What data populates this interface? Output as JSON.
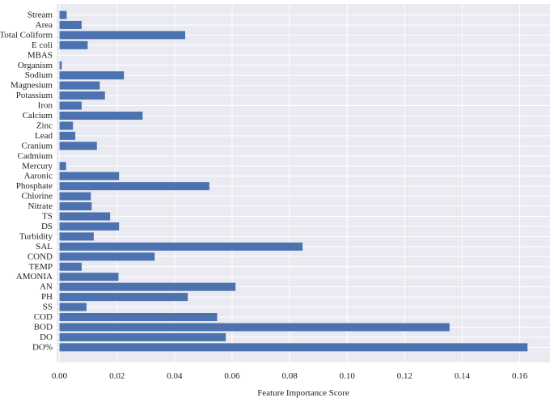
{
  "chart_data": {
    "type": "bar",
    "orientation": "horizontal",
    "title": "",
    "xlabel": "Feature Importance Score",
    "ylabel": "",
    "xlim": [
      -0.001,
      0.1705
    ],
    "xticks": [
      0.0,
      0.02,
      0.04,
      0.06,
      0.08,
      0.1,
      0.12,
      0.14,
      0.16
    ],
    "xtick_labels": [
      "0.00",
      "0.02",
      "0.04",
      "0.06",
      "0.08",
      "0.10",
      "0.12",
      "0.14",
      "0.16"
    ],
    "grid": true,
    "legend": "none",
    "colors": {
      "bar": "#4c72b0",
      "plot_background": "#eaeaf2",
      "grid": "#ffffff"
    },
    "categories": [
      "Stream",
      "Area",
      "Total Coliform",
      "E coli",
      "MBAS",
      "Organism",
      "Sodium",
      "Magnesium",
      "Potassium",
      "Iron",
      "Calcium",
      "Zinc",
      "Lead",
      "Cranium",
      "Cadmium",
      "Mercury",
      "Aaronic",
      "Phosphate",
      "Chlorine",
      "Nitrate",
      "TS",
      "DS",
      "Turbidity",
      "SAL",
      "COND",
      "TEMP",
      "AMONIA",
      "AN",
      "PH",
      "SS",
      "COD",
      "BOD",
      "DO",
      "DO%"
    ],
    "values": [
      0.0025,
      0.0077,
      0.0437,
      0.0098,
      0.0,
      0.0008,
      0.0224,
      0.014,
      0.0158,
      0.0077,
      0.0289,
      0.0047,
      0.0055,
      0.013,
      0.0,
      0.0023,
      0.0207,
      0.0521,
      0.0109,
      0.0112,
      0.0176,
      0.0207,
      0.0119,
      0.0845,
      0.0331,
      0.0077,
      0.0205,
      0.0612,
      0.0446,
      0.0094,
      0.0548,
      0.1356,
      0.0578,
      0.1627
    ]
  }
}
